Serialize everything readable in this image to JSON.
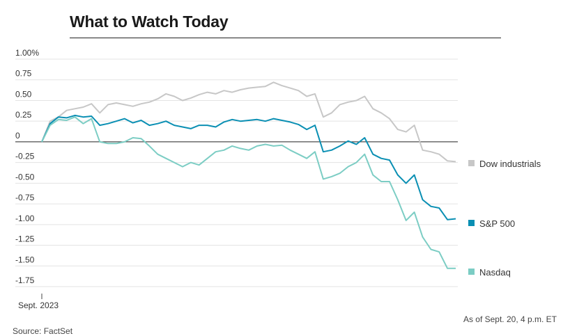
{
  "title": "What to Watch Today",
  "source": "Source: FactSet",
  "as_of": "As of Sept. 20, 4 p.m. ET",
  "chart_data": {
    "type": "line",
    "x_tick_label": "Sept. 2023",
    "y_ticks": [
      {
        "value": 1.0,
        "label": "1.00%"
      },
      {
        "value": 0.75,
        "label": "0.75"
      },
      {
        "value": 0.5,
        "label": "0.50"
      },
      {
        "value": 0.25,
        "label": "0.25"
      },
      {
        "value": 0,
        "label": "0"
      },
      {
        "value": -0.25,
        "label": "-0.25"
      },
      {
        "value": -0.5,
        "label": "-0.50"
      },
      {
        "value": -0.75,
        "label": "-0.75"
      },
      {
        "value": -1.0,
        "label": "-1.00"
      },
      {
        "value": -1.25,
        "label": "-1.25"
      },
      {
        "value": -1.5,
        "label": "-1.50"
      },
      {
        "value": -1.75,
        "label": "-1.75"
      }
    ],
    "ylim": [
      -1.75,
      1.0
    ],
    "grid": true,
    "legend_placement": "right",
    "series": [
      {
        "name": "Dow industrials",
        "color": "#c7c7c7",
        "values": [
          0.0,
          0.25,
          0.3,
          0.38,
          0.4,
          0.42,
          0.46,
          0.35,
          0.45,
          0.47,
          0.45,
          0.43,
          0.46,
          0.48,
          0.52,
          0.58,
          0.55,
          0.5,
          0.53,
          0.57,
          0.6,
          0.58,
          0.62,
          0.6,
          0.63,
          0.65,
          0.66,
          0.67,
          0.72,
          0.68,
          0.65,
          0.62,
          0.55,
          0.58,
          0.3,
          0.35,
          0.45,
          0.48,
          0.5,
          0.55,
          0.4,
          0.35,
          0.28,
          0.15,
          0.12,
          0.2,
          -0.1,
          -0.12,
          -0.15,
          -0.23,
          -0.24
        ]
      },
      {
        "name": "S&P 500",
        "color": "#0a8fb3",
        "values": [
          0.0,
          0.22,
          0.3,
          0.29,
          0.32,
          0.3,
          0.31,
          0.2,
          0.22,
          0.25,
          0.28,
          0.23,
          0.26,
          0.2,
          0.22,
          0.25,
          0.2,
          0.18,
          0.16,
          0.2,
          0.2,
          0.18,
          0.24,
          0.27,
          0.25,
          0.26,
          0.27,
          0.25,
          0.28,
          0.26,
          0.24,
          0.21,
          0.15,
          0.2,
          -0.12,
          -0.1,
          -0.05,
          0.01,
          -0.03,
          0.05,
          -0.15,
          -0.2,
          -0.22,
          -0.4,
          -0.5,
          -0.4,
          -0.7,
          -0.78,
          -0.8,
          -0.94,
          -0.93
        ]
      },
      {
        "name": "Nasdaq",
        "color": "#7ccdc4",
        "values": [
          0.0,
          0.2,
          0.27,
          0.26,
          0.3,
          0.22,
          0.28,
          0.0,
          -0.02,
          -0.02,
          0.0,
          0.05,
          0.04,
          -0.05,
          -0.15,
          -0.2,
          -0.25,
          -0.3,
          -0.25,
          -0.28,
          -0.2,
          -0.12,
          -0.1,
          -0.05,
          -0.08,
          -0.1,
          -0.05,
          -0.03,
          -0.05,
          -0.04,
          -0.1,
          -0.15,
          -0.2,
          -0.12,
          -0.45,
          -0.42,
          -0.38,
          -0.3,
          -0.25,
          -0.15,
          -0.4,
          -0.48,
          -0.48,
          -0.7,
          -0.95,
          -0.85,
          -1.15,
          -1.3,
          -1.33,
          -1.53,
          -1.53
        ]
      }
    ]
  }
}
